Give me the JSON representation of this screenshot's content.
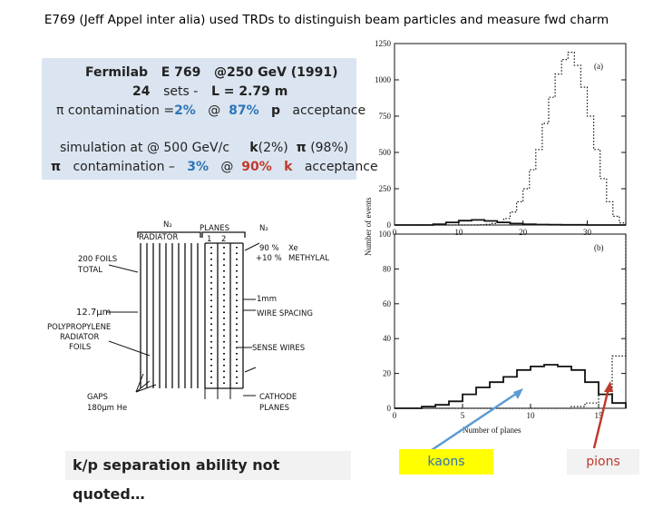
{
  "title": "E769 (Jeff Appel inter alia) used TRDs to distinguish beam particles and measure fwd charm",
  "infobox": {
    "line1_a": "Fermilab",
    "line1_b": "E 769",
    "line1_c": "@250 GeV (1991)",
    "line2_a": "24",
    "line2_b": "sets -",
    "line2_c": "L = 2.79 m",
    "line3_a": "π contamination =",
    "line3_b": "2%",
    "line3_c": "@",
    "line3_d": "87%",
    "line3_e": "p",
    "line3_f": "acceptance",
    "line4_a": "simulation at @ 500 GeV/c",
    "line4_b": "k",
    "line4_c": "(2%)",
    "line4_d": "π",
    "line4_e": "(98%)",
    "line5_a": "π",
    "line5_b": "contamination –",
    "line5_c": "3%",
    "line5_d": "@",
    "line5_e": "90%",
    "line5_f": "k",
    "line5_g": "acceptance"
  },
  "trd_diagram": {
    "n2_left": "N₂",
    "radiator": "RADIATOR",
    "planes": "PLANES",
    "plane_1": "1",
    "plane_2": "2",
    "n2_right": "N₂",
    "gas_1": "90 %",
    "gas_1b": "Xe",
    "gas_2": "+10 %",
    "gas_2b": "METHYLAL",
    "foils_1": "200 FOILS",
    "foils_2": "TOTAL",
    "thickness": "12.7μm",
    "pp_1": "POLYPROPYLENE",
    "pp_2": "RADIATOR",
    "pp_3": "FOILS",
    "mm": "1mm",
    "wire_spacing": "WIRE SPACING",
    "sense_wires": "SENSE WIRES",
    "gaps_1": "GAPS",
    "gaps_2": "180μm He",
    "cathode_1": "CATHODE",
    "cathode_2": "PLANES"
  },
  "note": "k/p separation ability not quoted…",
  "kaons_label": "kaons",
  "pions_label": "pions",
  "chart_data": [
    {
      "type": "line",
      "panel_label": "(a)",
      "xlim": [
        0,
        36
      ],
      "ylim": [
        0,
        1250
      ],
      "x_ticks": [
        "0",
        "10",
        "20",
        "30"
      ],
      "y_ticks": [
        "0",
        "250",
        "500",
        "750",
        "1000",
        "1250"
      ],
      "series": [
        {
          "style": "dotted",
          "x": [
            0,
            1,
            2,
            3,
            4,
            5,
            6,
            7,
            8,
            9,
            10,
            11,
            12,
            13,
            14,
            15,
            16,
            17,
            18,
            19,
            20,
            21,
            22,
            23,
            24,
            25,
            26,
            27,
            28,
            29,
            30,
            31,
            32,
            33,
            34,
            35,
            36
          ],
          "values": [
            0,
            0,
            0,
            0,
            0,
            0,
            0,
            0,
            0,
            0,
            0,
            0,
            0,
            2,
            5,
            10,
            20,
            45,
            90,
            160,
            250,
            380,
            520,
            700,
            880,
            1040,
            1140,
            1190,
            1100,
            950,
            750,
            520,
            320,
            160,
            60,
            15,
            0
          ]
        },
        {
          "style": "solid",
          "x": [
            0,
            2,
            4,
            6,
            8,
            10,
            12,
            14,
            16,
            18,
            20,
            22,
            24,
            26,
            28,
            30,
            32,
            34,
            36
          ],
          "values": [
            0,
            0,
            0,
            5,
            18,
            30,
            35,
            28,
            18,
            10,
            5,
            3,
            2,
            1,
            1,
            0,
            0,
            0,
            0
          ]
        }
      ]
    },
    {
      "type": "line",
      "panel_label": "(b)",
      "xlabel": "Number of planes",
      "ylabel": "Number of events",
      "xlim": [
        0,
        17
      ],
      "ylim": [
        0,
        100
      ],
      "x_ticks": [
        "0",
        "5",
        "10",
        "15"
      ],
      "y_ticks": [
        "0",
        "20",
        "40",
        "60",
        "80",
        "100"
      ],
      "series": [
        {
          "style": "solid",
          "x": [
            0,
            1,
            2,
            3,
            4,
            5,
            6,
            7,
            8,
            9,
            10,
            11,
            12,
            13,
            14,
            15,
            16,
            17
          ],
          "values": [
            0,
            0,
            1,
            2,
            4,
            8,
            12,
            15,
            18,
            22,
            24,
            25,
            24,
            22,
            15,
            8,
            3,
            0
          ]
        },
        {
          "style": "dotted",
          "x": [
            0,
            1,
            2,
            3,
            4,
            5,
            6,
            7,
            8,
            9,
            10,
            11,
            12,
            13,
            14,
            15,
            16,
            17
          ],
          "values": [
            0,
            0,
            0,
            0,
            0,
            0,
            0,
            0,
            0,
            0,
            0,
            0,
            0,
            1,
            3,
            8,
            30,
            105
          ]
        }
      ]
    }
  ]
}
